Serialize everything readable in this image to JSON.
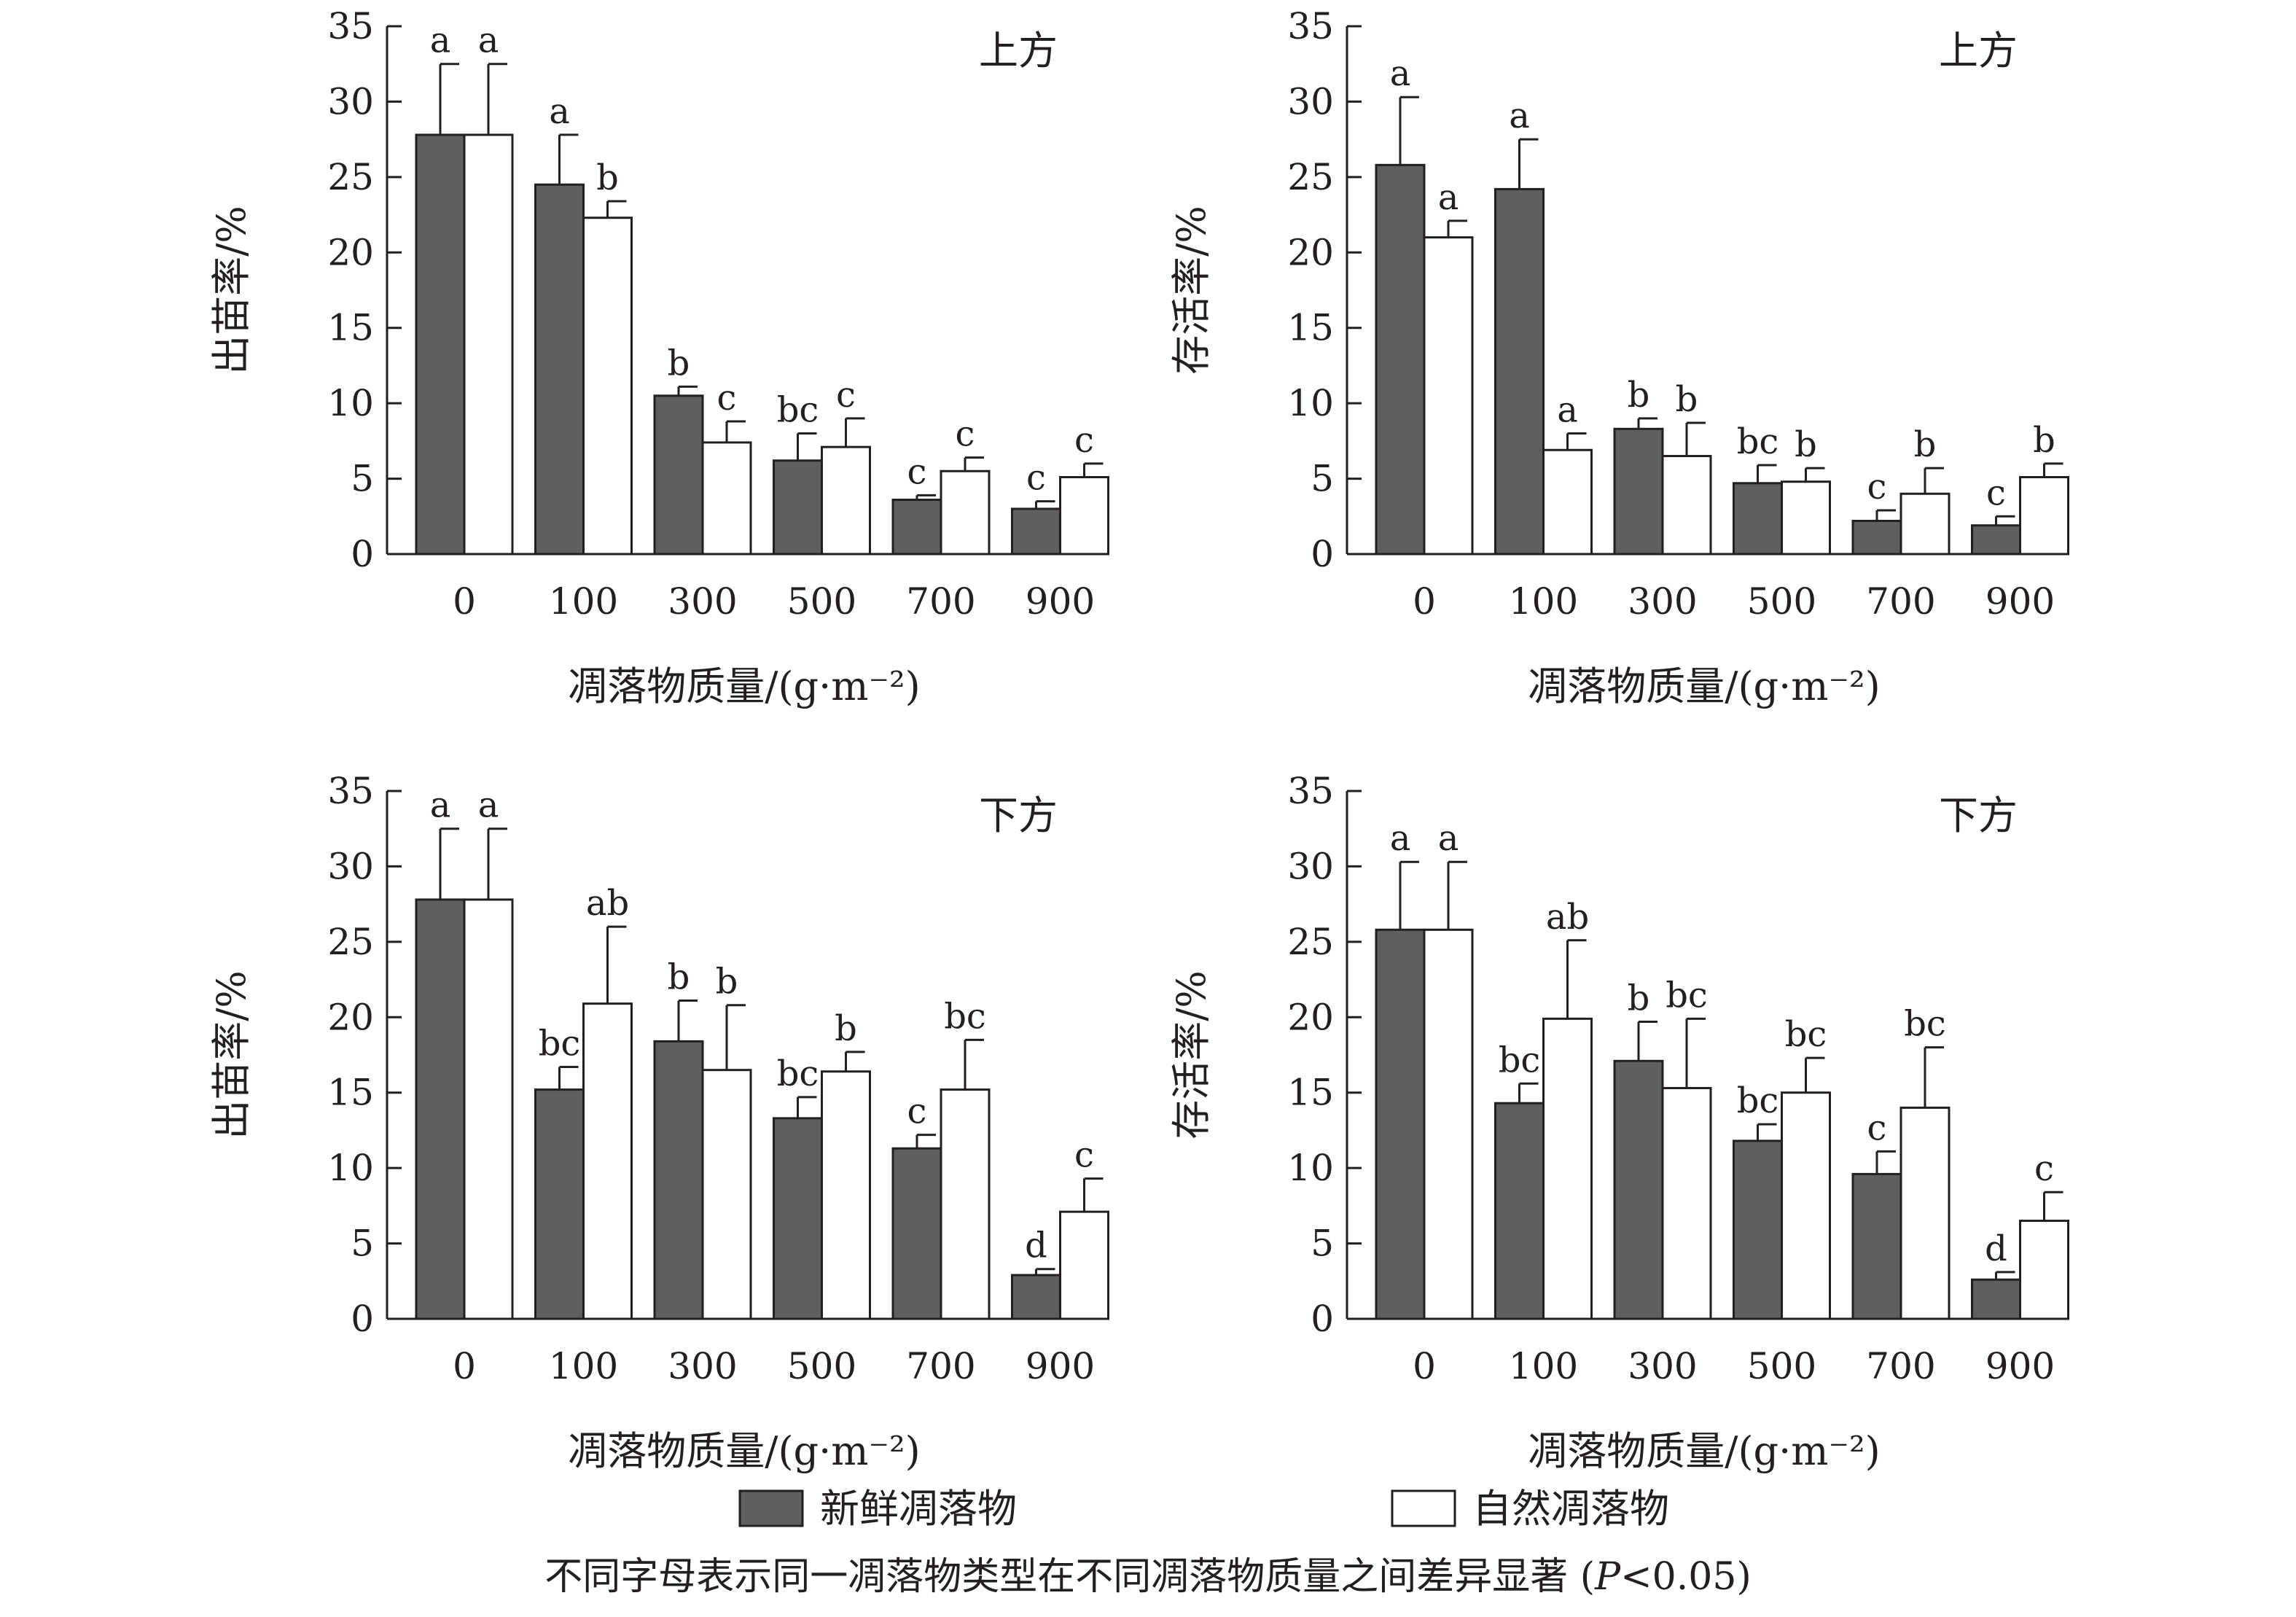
{
  "chart_data": [
    {
      "type": "bar",
      "panel_label": "上方",
      "ylabel": "出苗率/%",
      "xlabel": "凋落物质量/(g·m⁻²)",
      "ylim": [
        0,
        35
      ],
      "yticks": [
        "0",
        "5",
        "10",
        "15",
        "20",
        "25",
        "30",
        "35"
      ],
      "categories": [
        "0",
        "100",
        "300",
        "500",
        "700",
        "900"
      ],
      "series": [
        {
          "name": "新鲜凋落物",
          "values": [
            27.8,
            24.5,
            10.5,
            6.2,
            3.6,
            3.0
          ],
          "errors": [
            4.7,
            3.3,
            0.6,
            1.8,
            0.3,
            0.5
          ],
          "letters": [
            "a",
            "a",
            "b",
            "bc",
            "c",
            "c"
          ]
        },
        {
          "name": "自然凋落物",
          "values": [
            27.8,
            22.3,
            7.4,
            7.1,
            5.5,
            5.1
          ],
          "errors": [
            4.7,
            1.1,
            1.4,
            1.9,
            0.9,
            0.9
          ],
          "letters": [
            "a",
            "b",
            "c",
            "c",
            "c",
            "c"
          ]
        }
      ]
    },
    {
      "type": "bar",
      "panel_label": "上方",
      "ylabel": "存活率/%",
      "xlabel": "凋落物质量/(g·m⁻²)",
      "ylim": [
        0,
        35
      ],
      "yticks": [
        "0",
        "5",
        "10",
        "15",
        "20",
        "25",
        "30",
        "35"
      ],
      "categories": [
        "0",
        "100",
        "300",
        "500",
        "700",
        "900"
      ],
      "series": [
        {
          "name": "新鲜凋落物",
          "values": [
            25.8,
            24.2,
            8.3,
            4.7,
            2.2,
            1.9
          ],
          "errors": [
            4.5,
            3.3,
            0.7,
            1.2,
            0.7,
            0.6
          ],
          "letters": [
            "a",
            "a",
            "b",
            "bc",
            "c",
            "c"
          ]
        },
        {
          "name": "自然凋落物",
          "values": [
            21.0,
            6.9,
            6.5,
            4.8,
            4.0,
            5.1
          ],
          "errors": [
            1.1,
            1.1,
            2.2,
            0.9,
            1.7,
            0.9
          ],
          "letters": [
            "a",
            "a",
            "b",
            "b",
            "b",
            "b"
          ]
        }
      ]
    },
    {
      "type": "bar",
      "panel_label": "下方",
      "ylabel": "出苗率/%",
      "xlabel": "凋落物质量/(g·m⁻²)",
      "ylim": [
        0,
        35
      ],
      "yticks": [
        "0",
        "5",
        "10",
        "15",
        "20",
        "25",
        "30",
        "35"
      ],
      "categories": [
        "0",
        "100",
        "300",
        "500",
        "700",
        "900"
      ],
      "series": [
        {
          "name": "新鲜凋落物",
          "values": [
            27.8,
            15.2,
            18.4,
            13.3,
            11.3,
            2.9
          ],
          "errors": [
            4.7,
            1.5,
            2.7,
            1.4,
            0.9,
            0.4
          ],
          "letters": [
            "a",
            "bc",
            "b",
            "bc",
            "c",
            "d"
          ]
        },
        {
          "name": "自然凋落物",
          "values": [
            27.8,
            20.9,
            16.5,
            16.4,
            15.2,
            7.1
          ],
          "errors": [
            4.7,
            5.1,
            4.3,
            1.3,
            3.3,
            2.2
          ],
          "letters": [
            "a",
            "ab",
            "b",
            "b",
            "bc",
            "c"
          ]
        }
      ]
    },
    {
      "type": "bar",
      "panel_label": "下方",
      "ylabel": "存活率/%",
      "xlabel": "凋落物质量/(g·m⁻²)",
      "ylim": [
        0,
        35
      ],
      "yticks": [
        "0",
        "5",
        "10",
        "15",
        "20",
        "25",
        "30",
        "35"
      ],
      "categories": [
        "0",
        "100",
        "300",
        "500",
        "700",
        "900"
      ],
      "series": [
        {
          "name": "新鲜凋落物",
          "values": [
            25.8,
            14.3,
            17.1,
            11.8,
            9.6,
            2.6
          ],
          "errors": [
            4.5,
            1.3,
            2.6,
            1.1,
            1.5,
            0.5
          ],
          "letters": [
            "a",
            "bc",
            "b",
            "bc",
            "c",
            "d"
          ]
        },
        {
          "name": "自然凋落物",
          "values": [
            25.8,
            19.9,
            15.3,
            15.0,
            14.0,
            6.5
          ],
          "errors": [
            4.5,
            5.2,
            4.6,
            2.3,
            4.0,
            1.9
          ],
          "letters": [
            "a",
            "ab",
            "bc",
            "bc",
            "bc",
            "c"
          ]
        }
      ]
    }
  ],
  "colors": {
    "fresh": "#5f5f61",
    "natural": "#ffffff",
    "ink": "#231f20"
  },
  "legend": {
    "fresh_label": "新鲜凋落物",
    "natural_label": "自然凋落物"
  },
  "footnote": {
    "text_before": "不同字母表示同一凋落物类型在不同凋落物质量之间差异显著 (",
    "p_symbol": "P",
    "text_after": "<0.05)"
  }
}
